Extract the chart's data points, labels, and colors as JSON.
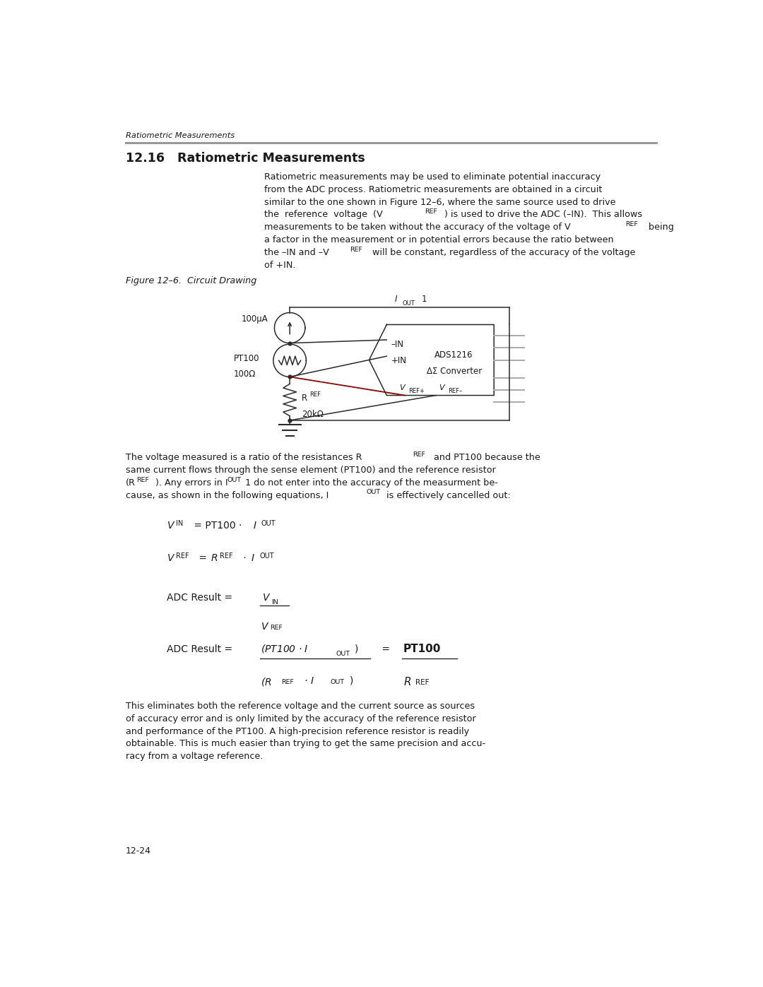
{
  "page_width": 10.8,
  "page_height": 13.97,
  "bg_color": "#ffffff",
  "text_color": "#1a1a1a",
  "line_color": "#2a2a2a",
  "gray_color": "#888888",
  "red_wire_color": "#8b0000",
  "header_text": "Ratiometric Measurements",
  "section_title": "12.16   Ratiometric Measurements",
  "figure_caption": "Figure 12–6.  Circuit Drawing",
  "footer_text": "12-24",
  "fontsize_body": 9.2,
  "fontsize_small": 6.8,
  "fontsize_section": 12.5,
  "lh": 0.232
}
